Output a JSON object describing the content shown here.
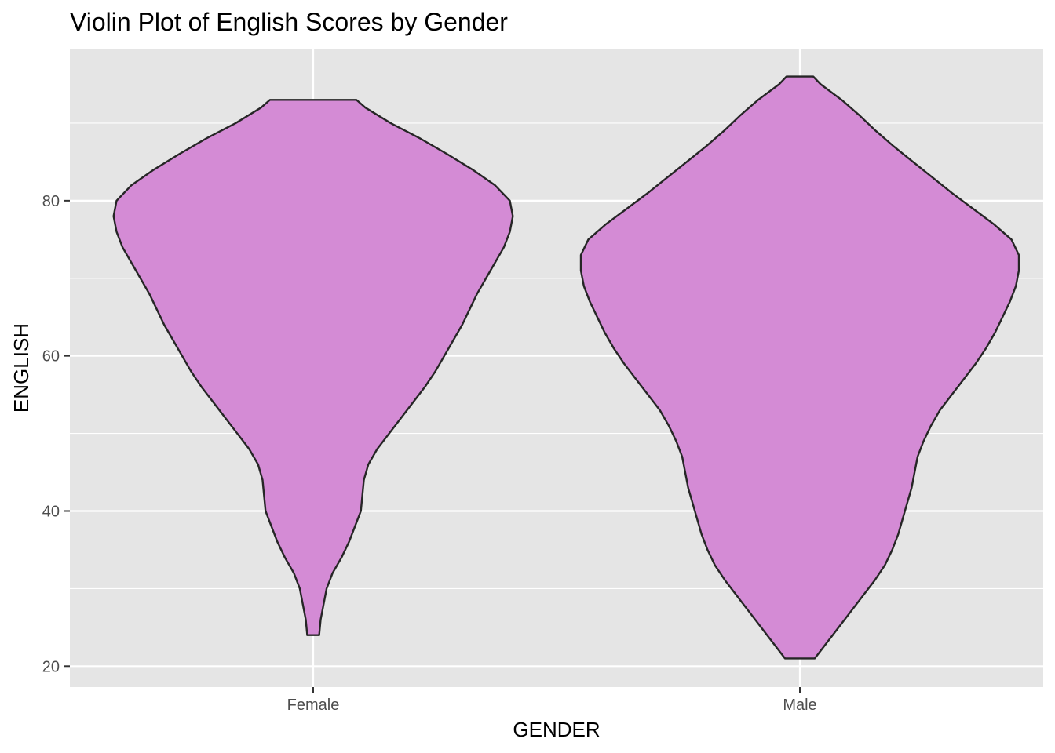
{
  "chart_data": {
    "type": "violin",
    "title": "Violin Plot of English Scores by Gender",
    "xlabel": "GENDER",
    "ylabel": "ENGLISH",
    "categories": [
      "Female",
      "Male"
    ],
    "y_ticks": [
      20,
      40,
      60,
      80
    ],
    "ylim": [
      17.3,
      99.6
    ],
    "grid": true,
    "legend": "none",
    "fill_color": "#d48bd5",
    "outline_color": "#262626",
    "panel_color": "#e5e5e5",
    "series": [
      {
        "category": "Female",
        "min": 24,
        "max": 93,
        "density": [
          [
            24,
            0.04
          ],
          [
            26,
            0.05
          ],
          [
            28,
            0.07
          ],
          [
            30,
            0.09
          ],
          [
            32,
            0.13
          ],
          [
            34,
            0.19
          ],
          [
            36,
            0.24
          ],
          [
            38,
            0.28
          ],
          [
            40,
            0.32
          ],
          [
            42,
            0.33
          ],
          [
            44,
            0.34
          ],
          [
            46,
            0.37
          ],
          [
            48,
            0.43
          ],
          [
            50,
            0.51
          ],
          [
            52,
            0.59
          ],
          [
            54,
            0.67
          ],
          [
            56,
            0.75
          ],
          [
            58,
            0.82
          ],
          [
            60,
            0.88
          ],
          [
            62,
            0.94
          ],
          [
            64,
            1.0
          ],
          [
            66,
            1.05
          ],
          [
            68,
            1.1
          ],
          [
            70,
            1.16
          ],
          [
            72,
            1.22
          ],
          [
            74,
            1.28
          ],
          [
            76,
            1.32
          ],
          [
            78,
            1.34
          ],
          [
            80,
            1.32
          ],
          [
            82,
            1.22
          ],
          [
            84,
            1.07
          ],
          [
            86,
            0.9
          ],
          [
            88,
            0.72
          ],
          [
            90,
            0.52
          ],
          [
            92,
            0.35
          ],
          [
            93,
            0.29
          ]
        ]
      },
      {
        "category": "Male",
        "min": 21,
        "max": 96,
        "density": [
          [
            21,
            0.1
          ],
          [
            23,
            0.18
          ],
          [
            25,
            0.26
          ],
          [
            27,
            0.34
          ],
          [
            29,
            0.42
          ],
          [
            31,
            0.5
          ],
          [
            33,
            0.57
          ],
          [
            35,
            0.62
          ],
          [
            37,
            0.66
          ],
          [
            39,
            0.69
          ],
          [
            41,
            0.72
          ],
          [
            43,
            0.75
          ],
          [
            45,
            0.77
          ],
          [
            47,
            0.79
          ],
          [
            49,
            0.83
          ],
          [
            51,
            0.88
          ],
          [
            53,
            0.94
          ],
          [
            55,
            1.02
          ],
          [
            57,
            1.1
          ],
          [
            59,
            1.18
          ],
          [
            61,
            1.25
          ],
          [
            63,
            1.31
          ],
          [
            65,
            1.36
          ],
          [
            67,
            1.41
          ],
          [
            69,
            1.45
          ],
          [
            71,
            1.47
          ],
          [
            73,
            1.47
          ],
          [
            75,
            1.42
          ],
          [
            77,
            1.3
          ],
          [
            79,
            1.16
          ],
          [
            81,
            1.02
          ],
          [
            83,
            0.89
          ],
          [
            85,
            0.76
          ],
          [
            87,
            0.63
          ],
          [
            89,
            0.51
          ],
          [
            91,
            0.4
          ],
          [
            93,
            0.28
          ],
          [
            95,
            0.14
          ],
          [
            96,
            0.09
          ]
        ]
      }
    ]
  }
}
